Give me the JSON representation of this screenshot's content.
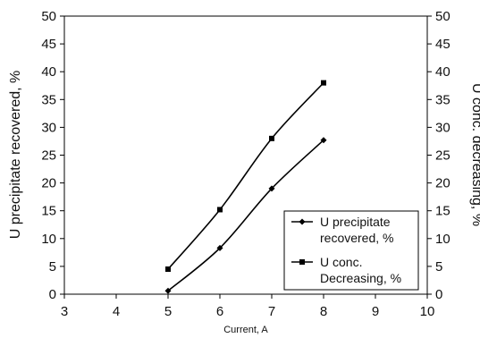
{
  "chart_data": {
    "type": "line",
    "xlabel": "Current, A",
    "ylabel_left": "U precipitate recovered,  %",
    "ylabel_right": "U conc. decreasing, %",
    "xlim": [
      3,
      10
    ],
    "ylim": [
      0,
      50
    ],
    "x_ticks": [
      3,
      4,
      5,
      6,
      7,
      8,
      9,
      10
    ],
    "y_ticks": [
      0,
      5,
      10,
      15,
      20,
      25,
      30,
      35,
      40,
      45,
      50
    ],
    "grid": false,
    "legend_position": "bottom-right",
    "series": [
      {
        "name_lines": [
          "U precipitate",
          "recovered, %"
        ],
        "marker": "diamond",
        "color": "#000000",
        "x": [
          5,
          6,
          7,
          8
        ],
        "y": [
          0.6,
          8.3,
          19.0,
          27.7
        ]
      },
      {
        "name_lines": [
          "U conc.",
          "Decreasing, %"
        ],
        "marker": "square",
        "color": "#000000",
        "x": [
          5,
          6,
          7,
          8
        ],
        "y": [
          4.5,
          15.2,
          28.0,
          38.0
        ]
      }
    ]
  }
}
